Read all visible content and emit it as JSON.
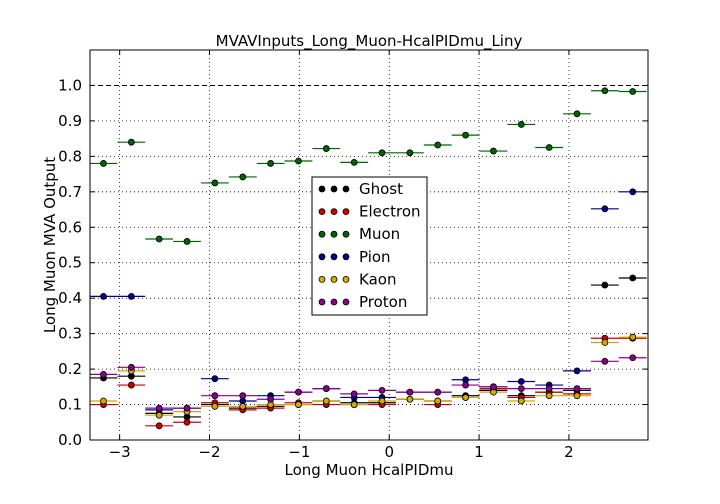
{
  "chart_data": {
    "type": "scatter",
    "title": "MVAVInputs_Long_Muon-HcalPIDmu_Liny",
    "xlabel": "Long Muon HcalPIDmu",
    "ylabel": "Long Muon MVA Output",
    "xlim": [
      -3.33,
      2.88
    ],
    "ylim": [
      0.0,
      1.1
    ],
    "xticks": [
      -3,
      -2,
      -1,
      0,
      1,
      2
    ],
    "xtick_labels": [
      "−3",
      "−2",
      "−1",
      "0",
      "1",
      "2"
    ],
    "yticks": [
      0.0,
      0.1,
      0.2,
      0.3,
      0.4,
      0.5,
      0.6,
      0.7,
      0.8,
      0.9,
      1.0
    ],
    "ytick_labels": [
      "0.0",
      "0.1",
      "0.2",
      "0.3",
      "0.4",
      "0.5",
      "0.6",
      "0.7",
      "0.8",
      "0.9",
      "1.0"
    ],
    "grid": true,
    "reference_line": 1.0,
    "legend_position": "center",
    "bin_half_width": 0.155,
    "x": [
      -3.18,
      -2.87,
      -2.56,
      -2.25,
      -1.94,
      -1.63,
      -1.32,
      -1.01,
      -0.7,
      -0.39,
      -0.08,
      0.23,
      0.54,
      0.85,
      1.16,
      1.47,
      1.78,
      2.09,
      2.4,
      2.71
    ],
    "series": [
      {
        "name": "Ghost",
        "color": "#000000",
        "values": [
          0.175,
          0.18,
          0.075,
          0.065,
          0.1,
          0.09,
          0.095,
          0.1,
          0.11,
          0.105,
          0.105,
          0.115,
          0.11,
          0.125,
          0.14,
          0.125,
          0.135,
          0.14,
          0.437,
          0.457
        ]
      },
      {
        "name": "Electron",
        "color": "#cc0000",
        "values": [
          0.1,
          0.155,
          0.04,
          0.05,
          0.105,
          0.085,
          0.09,
          0.105,
          0.1,
          0.1,
          0.1,
          0.115,
          0.1,
          0.12,
          0.145,
          0.12,
          0.135,
          0.13,
          0.287,
          0.287
        ]
      },
      {
        "name": "Muon",
        "color": "#006400",
        "values": [
          0.78,
          0.84,
          0.567,
          0.56,
          0.725,
          0.742,
          0.78,
          0.787,
          0.822,
          0.783,
          0.81,
          0.81,
          0.832,
          0.86,
          0.815,
          0.89,
          0.825,
          0.92,
          0.985,
          0.983
        ]
      },
      {
        "name": "Pion",
        "color": "#00008b",
        "values": [
          0.405,
          0.405,
          0.085,
          0.09,
          0.173,
          0.11,
          0.125,
          0.135,
          0.145,
          0.12,
          0.12,
          0.135,
          0.135,
          0.17,
          0.15,
          0.165,
          0.155,
          0.195,
          0.652,
          0.7
        ]
      },
      {
        "name": "Kaon",
        "color": "#d4a900",
        "values": [
          0.11,
          0.195,
          0.07,
          0.08,
          0.095,
          0.095,
          0.1,
          0.1,
          0.11,
          0.1,
          0.11,
          0.115,
          0.11,
          0.12,
          0.135,
          0.11,
          0.125,
          0.125,
          0.275,
          0.29
        ]
      },
      {
        "name": "Proton",
        "color": "#8b008b",
        "values": [
          0.185,
          0.205,
          0.09,
          0.09,
          0.125,
          0.125,
          0.115,
          0.135,
          0.145,
          0.13,
          0.14,
          0.135,
          0.135,
          0.155,
          0.15,
          0.145,
          0.145,
          0.145,
          0.222,
          0.232
        ]
      }
    ]
  }
}
